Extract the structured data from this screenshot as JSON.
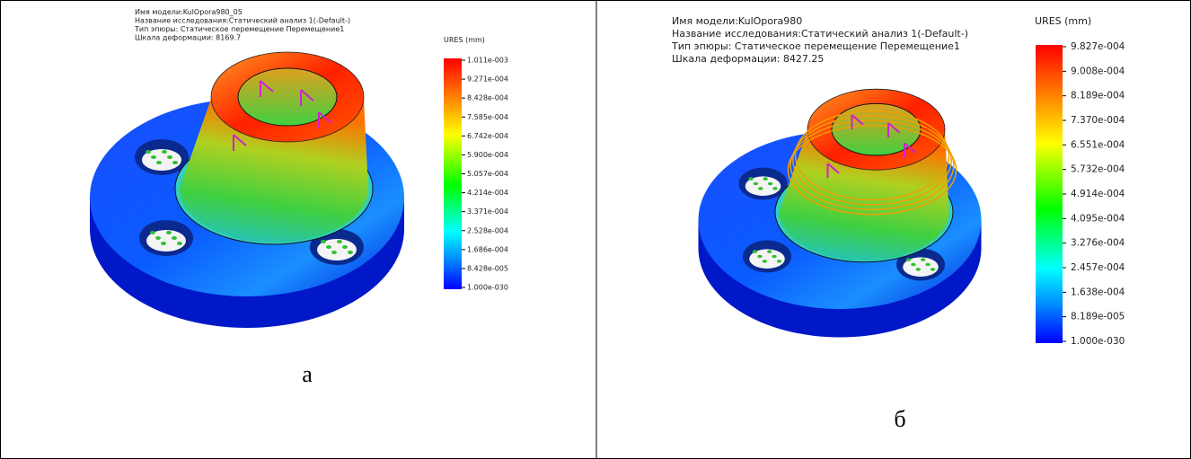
{
  "panels": [
    {
      "header": [
        "Имя модели:KulOpora980_05",
        "Название исследования:Статический анализ 1(-Default-)",
        "Тип эпюры: Статическое перемещение Перемещение1",
        "Шкала деформации: 8169.7"
      ],
      "legend_title": "URES (mm)",
      "legend_labels": [
        "1.011e-003",
        "9.271e-004",
        "8.428e-004",
        "7.585e-004",
        "6.742e-004",
        "5.900e-004",
        "5.057e-004",
        "4.214e-004",
        "3.371e-004",
        "2.528e-004",
        "1.686e-004",
        "8.428e-005",
        "1.000e-030"
      ],
      "caption": "а"
    },
    {
      "header": [
        "Имя модели:KulOpora980",
        "Название исследования:Статический анализ 1(-Default-)",
        "Тип эпюры: Статическое перемещение Перемещение1",
        "Шкала деформации: 8427.25"
      ],
      "legend_title": "URES (mm)",
      "legend_labels": [
        "9.827e-004",
        "9.008e-004",
        "8.189e-004",
        "7.370e-004",
        "6.551e-004",
        "5.732e-004",
        "4.914e-004",
        "4.095e-004",
        "3.276e-004",
        "2.457e-004",
        "1.638e-004",
        "8.189e-005",
        "1.000e-030"
      ],
      "caption": "б"
    }
  ]
}
